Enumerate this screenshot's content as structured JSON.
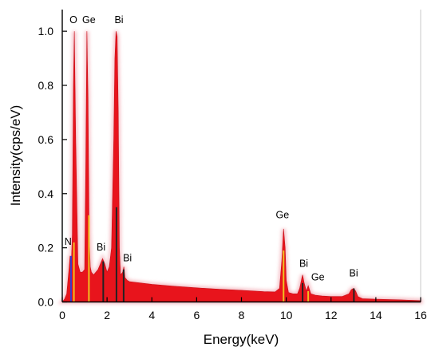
{
  "chart_data": {
    "type": "area",
    "xlabel": "Energy(keV)",
    "ylabel": "Intensity(cps/eV)",
    "xlim": [
      0,
      16
    ],
    "ylim": [
      0,
      1.08
    ],
    "xticks": [
      0,
      2,
      4,
      6,
      8,
      10,
      12,
      14,
      16
    ],
    "yticks": [
      0.0,
      0.2,
      0.4,
      0.6,
      0.8,
      1.0
    ],
    "tick_labels_x": [
      "0",
      "2",
      "4",
      "6",
      "8",
      "10",
      "12",
      "14",
      "16"
    ],
    "tick_labels_y": [
      "0.0",
      "0.2",
      "0.4",
      "0.6",
      "0.8",
      "1.0"
    ],
    "grid": false,
    "fill_color": "#e8141c",
    "fill_halo_color": "#f4b4bc",
    "spectrum": {
      "x": [
        0.0,
        0.1,
        0.2,
        0.3,
        0.35,
        0.39,
        0.45,
        0.5,
        0.54,
        0.6,
        0.7,
        0.8,
        0.9,
        1.0,
        1.05,
        1.1,
        1.15,
        1.2,
        1.25,
        1.3,
        1.4,
        1.5,
        1.6,
        1.7,
        1.8,
        1.9,
        2.0,
        2.1,
        2.2,
        2.3,
        2.35,
        2.4,
        2.45,
        2.5,
        2.55,
        2.6,
        2.7,
        2.75,
        2.8,
        2.9,
        3.0,
        4.0,
        5.0,
        6.0,
        7.0,
        8.0,
        9.0,
        9.5,
        9.7,
        9.8,
        9.88,
        9.95,
        10.0,
        10.1,
        10.3,
        10.5,
        10.6,
        10.7,
        10.73,
        10.8,
        10.9,
        10.98,
        11.1,
        11.3,
        11.6,
        12.0,
        12.5,
        12.8,
        12.9,
        13.0,
        13.1,
        13.2,
        13.4,
        14.0,
        15.0,
        16.0
      ],
      "y": [
        0.0,
        0.01,
        0.03,
        0.12,
        0.17,
        0.1,
        0.25,
        0.8,
        1.0,
        0.6,
        0.14,
        0.11,
        0.11,
        0.12,
        0.5,
        1.0,
        0.75,
        0.25,
        0.13,
        0.11,
        0.1,
        0.11,
        0.12,
        0.14,
        0.16,
        0.14,
        0.11,
        0.13,
        0.2,
        0.6,
        0.9,
        1.0,
        0.98,
        0.7,
        0.2,
        0.1,
        0.11,
        0.13,
        0.09,
        0.08,
        0.075,
        0.065,
        0.058,
        0.052,
        0.047,
        0.043,
        0.038,
        0.037,
        0.05,
        0.15,
        0.27,
        0.2,
        0.08,
        0.035,
        0.03,
        0.03,
        0.05,
        0.09,
        0.1,
        0.07,
        0.04,
        0.06,
        0.03,
        0.025,
        0.022,
        0.02,
        0.02,
        0.03,
        0.045,
        0.05,
        0.04,
        0.02,
        0.012,
        0.01,
        0.008,
        0.005
      ]
    },
    "element_lines": [
      {
        "element": "N",
        "energy": 0.39,
        "height": 0.17,
        "color": "#3b3bd1"
      },
      {
        "element": "O",
        "energy": 0.52,
        "height": 0.22,
        "color": "#f0c020"
      },
      {
        "element": "Ge",
        "energy": 1.19,
        "height": 0.32,
        "color": "#f0c020"
      },
      {
        "element": "Bi",
        "energy": 1.83,
        "height": 0.15,
        "color": "#222222"
      },
      {
        "element": "Bi",
        "energy": 2.42,
        "height": 0.35,
        "color": "#222222"
      },
      {
        "element": "Bi",
        "energy": 2.74,
        "height": 0.12,
        "color": "#222222"
      },
      {
        "element": "Ge",
        "energy": 9.88,
        "height": 0.19,
        "color": "#f0c020"
      },
      {
        "element": "Bi",
        "energy": 10.73,
        "height": 0.07,
        "color": "#222222"
      },
      {
        "element": "Ge",
        "energy": 10.98,
        "height": 0.04,
        "color": "#f0c020"
      },
      {
        "element": "Bi",
        "energy": 13.02,
        "height": 0.05,
        "color": "#222222"
      }
    ],
    "peak_labels": [
      {
        "text": "O",
        "x": 0.5,
        "y": 1.03
      },
      {
        "text": "Ge",
        "x": 1.19,
        "y": 1.03
      },
      {
        "text": "Bi",
        "x": 2.53,
        "y": 1.03
      },
      {
        "text": "N",
        "x": 0.26,
        "y": 0.21
      },
      {
        "text": "Bi",
        "x": 1.73,
        "y": 0.19
      },
      {
        "text": "Bi",
        "x": 2.91,
        "y": 0.15
      },
      {
        "text": "Ge",
        "x": 9.83,
        "y": 0.31
      },
      {
        "text": "Bi",
        "x": 10.78,
        "y": 0.13
      },
      {
        "text": "Ge",
        "x": 11.41,
        "y": 0.08
      },
      {
        "text": "Bi",
        "x": 13.01,
        "y": 0.095
      }
    ]
  }
}
